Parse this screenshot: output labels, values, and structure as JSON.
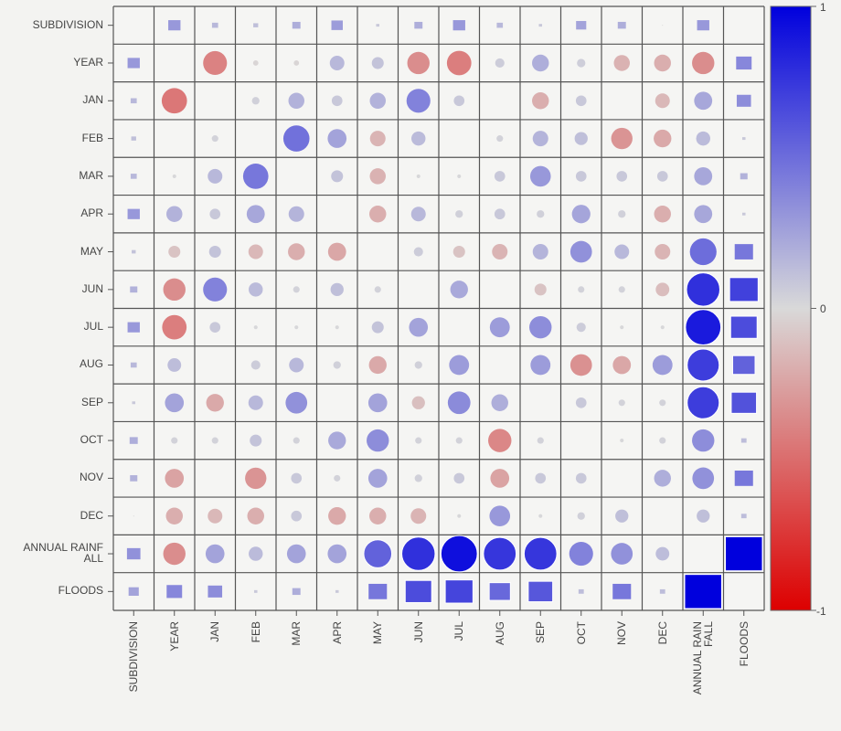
{
  "chart_data": {
    "type": "heatmap",
    "subtype": "correlation-matrix-markers",
    "title": "",
    "labels": [
      "SUBDIVISION",
      "YEAR",
      "JAN",
      "FEB",
      "MAR",
      "APR",
      "MAY",
      "JUN",
      "JUL",
      "AUG",
      "SEP",
      "OCT",
      "NOV",
      "DEC",
      "ANNUAL RAINFALL",
      "FLOODS"
    ],
    "y_tick_labels": [
      "SUBDIVISION",
      "YEAR",
      "JAN",
      "FEB",
      "MAR",
      "APR",
      "MAY",
      "JUN",
      "JUL",
      "AUG",
      "SEP",
      "OCT",
      "NOV",
      "DEC",
      "ANNUAL RAINF\nALL",
      "FLOODS"
    ],
    "x_tick_labels": [
      "SUBDIVISION",
      "YEAR",
      "JAN",
      "FEB",
      "MAR",
      "APR",
      "MAY",
      "JUN",
      "JUL",
      "AUG",
      "SEP",
      "OCT",
      "NOV",
      "DEC",
      "ANNUAL RAIN\nFALL",
      "FLOODS"
    ],
    "square_marker_labels": [
      "SUBDIVISION",
      "FLOODS"
    ],
    "matrix": [
      [
        null,
        0.3,
        0.15,
        0.12,
        0.2,
        0.28,
        0.08,
        0.2,
        0.3,
        0.15,
        0.08,
        0.25,
        0.2,
        0.0,
        0.3,
        null
      ],
      [
        0.3,
        null,
        -0.4,
        -0.02,
        -0.02,
        0.15,
        0.1,
        -0.35,
        -0.42,
        0.06,
        0.2,
        0.05,
        -0.18,
        -0.2,
        -0.35,
        0.38
      ],
      [
        0.15,
        -0.45,
        null,
        0.04,
        0.18,
        0.08,
        0.18,
        0.4,
        0.08,
        null,
        -0.2,
        0.08,
        null,
        -0.15,
        0.23,
        0.35
      ],
      [
        0.12,
        null,
        0.03,
        null,
        0.48,
        0.25,
        -0.17,
        0.14,
        null,
        0.03,
        0.17,
        0.12,
        -0.32,
        -0.22,
        0.14,
        0.08
      ],
      [
        0.15,
        0.01,
        0.15,
        0.45,
        null,
        0.1,
        -0.18,
        0.01,
        0.01,
        0.08,
        0.3,
        0.08,
        0.08,
        0.08,
        0.23,
        0.18
      ],
      [
        0.3,
        0.18,
        0.08,
        0.23,
        0.17,
        null,
        -0.2,
        0.15,
        0.04,
        0.08,
        0.04,
        0.24,
        0.04,
        -0.2,
        0.23,
        0.08
      ],
      [
        0.1,
        -0.1,
        0.1,
        -0.15,
        -0.2,
        -0.23,
        null,
        0.06,
        -0.1,
        -0.17,
        0.17,
        0.33,
        0.15,
        -0.17,
        0.5,
        0.45
      ],
      [
        0.18,
        -0.35,
        0.4,
        0.14,
        0.03,
        0.12,
        0.03,
        null,
        0.22,
        null,
        -0.1,
        0.03,
        0.03,
        -0.13,
        0.78,
        0.7
      ],
      [
        0.3,
        -0.42,
        0.08,
        0.01,
        0.01,
        0.01,
        0.1,
        0.25,
        null,
        0.28,
        0.35,
        0.06,
        0.01,
        0.01,
        0.88,
        0.65
      ],
      [
        0.15,
        0.13,
        null,
        0.06,
        0.15,
        0.04,
        -0.22,
        0.04,
        0.28,
        null,
        0.28,
        -0.33,
        -0.23,
        0.28,
        0.72,
        0.55
      ],
      [
        0.08,
        0.25,
        -0.22,
        0.15,
        0.33,
        null,
        0.25,
        -0.12,
        0.36,
        0.2,
        null,
        0.08,
        0.03,
        0.03,
        0.72,
        0.62
      ],
      [
        0.2,
        0.03,
        0.03,
        0.1,
        0.03,
        0.22,
        0.35,
        0.03,
        0.03,
        -0.38,
        0.03,
        null,
        0.01,
        0.03,
        0.35,
        0.13
      ],
      [
        0.18,
        -0.25,
        null,
        -0.32,
        0.08,
        0.03,
        0.25,
        0.04,
        0.08,
        -0.25,
        0.08,
        0.08,
        null,
        0.2,
        0.33,
        0.45
      ],
      [
        0.0,
        -0.2,
        -0.15,
        -0.2,
        0.08,
        -0.22,
        -0.2,
        -0.17,
        0.01,
        0.3,
        0.01,
        0.04,
        0.12,
        null,
        0.12,
        0.13
      ],
      [
        0.33,
        -0.35,
        0.25,
        0.14,
        0.25,
        0.25,
        0.55,
        0.78,
        0.93,
        0.75,
        0.75,
        0.4,
        0.33,
        0.13,
        null,
        1.0
      ],
      [
        0.25,
        0.38,
        0.35,
        0.08,
        0.2,
        0.08,
        0.45,
        0.65,
        0.68,
        0.52,
        0.6,
        0.13,
        0.45,
        0.13,
        1.0,
        null
      ]
    ],
    "colorbar": {
      "min": -1,
      "max": 1,
      "ticks": [
        "1",
        "0",
        "-1"
      ],
      "colors": {
        "positive": "#0000dd",
        "zero": "#d8d8d8",
        "negative": "#dd0000"
      }
    },
    "grid": true,
    "legend": "colorbar-right"
  }
}
